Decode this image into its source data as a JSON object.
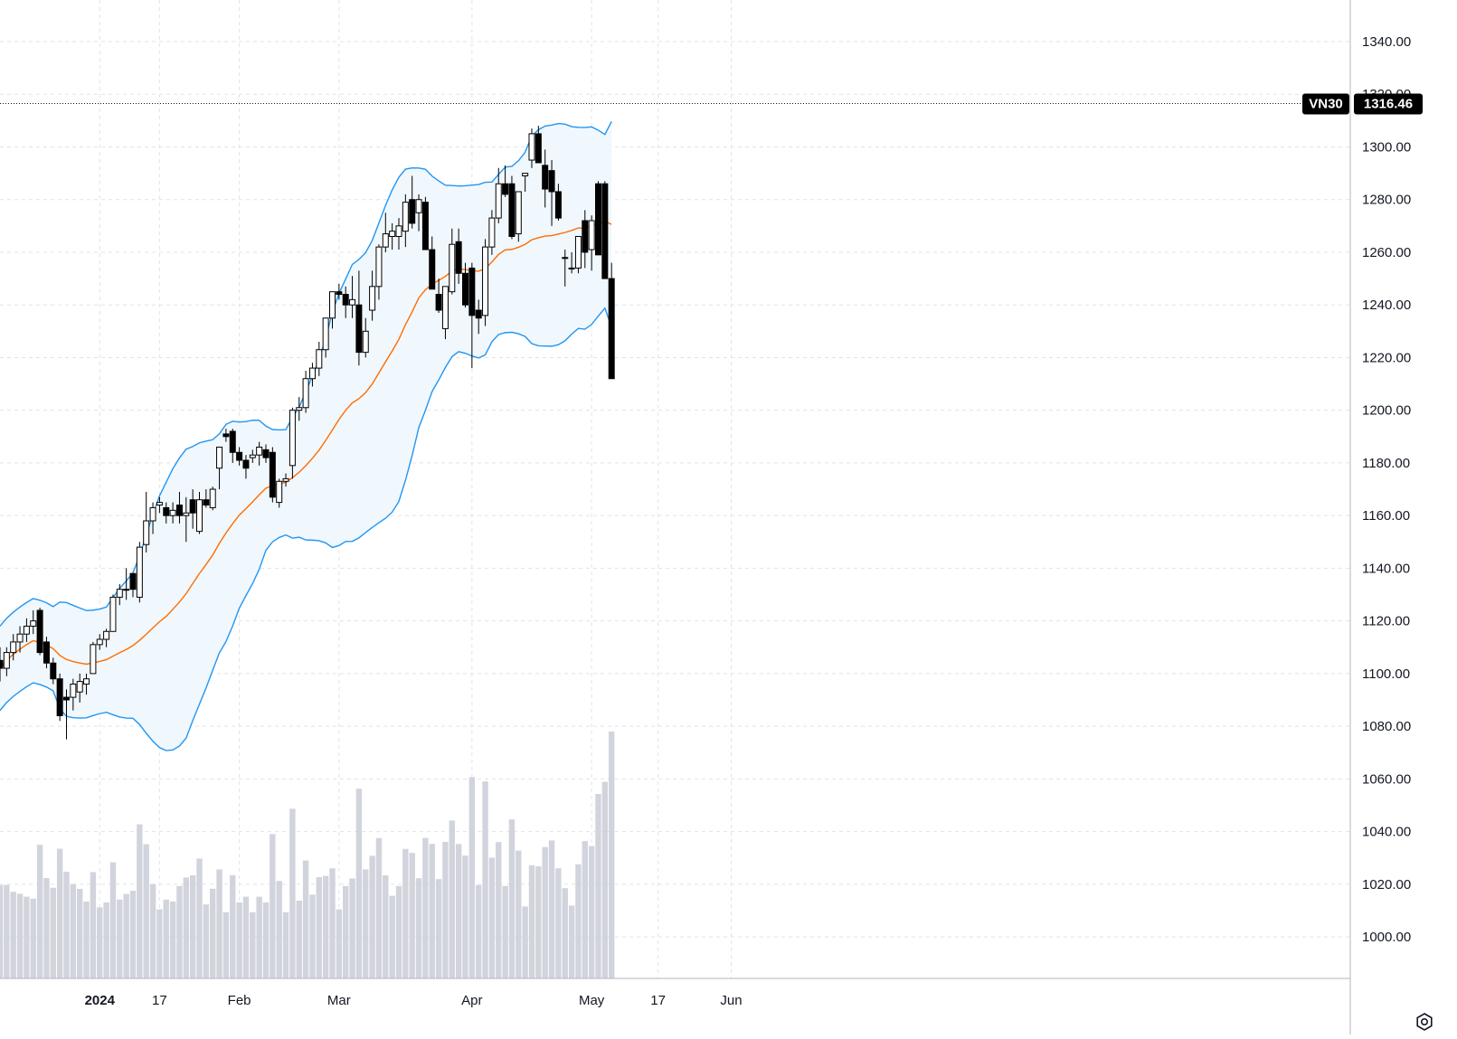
{
  "chart_data": {
    "type": "candlestick",
    "symbol": "VN30",
    "last_price": "1316.46",
    "y_axis": {
      "range": [
        990,
        1345
      ],
      "ticks": [
        "1000.00",
        "1020.00",
        "1040.00",
        "1060.00",
        "1080.00",
        "1100.00",
        "1120.00",
        "1140.00",
        "1160.00",
        "1180.00",
        "1200.00",
        "1220.00",
        "1240.00",
        "1260.00",
        "1280.00",
        "1300.00",
        "1320.00",
        "1340.00"
      ]
    },
    "x_axis": {
      "labels": [
        {
          "text": "2024",
          "bar": 15,
          "bold": true
        },
        {
          "text": "17",
          "bar": 24,
          "bold": false
        },
        {
          "text": "Feb",
          "bar": 36,
          "bold": false
        },
        {
          "text": "Mar",
          "bar": 51,
          "bold": false
        },
        {
          "text": "Apr",
          "bar": 71,
          "bold": false
        },
        {
          "text": "May",
          "bar": 89,
          "bold": false
        },
        {
          "text": "17",
          "bar": 99,
          "bold": false
        },
        {
          "text": "Jun",
          "bar": 110,
          "bold": false
        }
      ]
    },
    "candles_ohlc": [
      [
        1105,
        1110,
        1097,
        1102
      ],
      [
        1102,
        1110,
        1099,
        1108
      ],
      [
        1108,
        1115,
        1105,
        1112
      ],
      [
        1112,
        1118,
        1108,
        1115
      ],
      [
        1115,
        1121,
        1112,
        1118
      ],
      [
        1118,
        1124,
        1115,
        1120
      ],
      [
        1124,
        1125,
        1107,
        1108
      ],
      [
        1112,
        1114,
        1102,
        1104
      ],
      [
        1104,
        1106,
        1096,
        1098
      ],
      [
        1098,
        1100,
        1082,
        1084
      ],
      [
        1091,
        1094,
        1075,
        1090
      ],
      [
        1091,
        1098,
        1086,
        1096
      ],
      [
        1093,
        1100,
        1089,
        1097
      ],
      [
        1096,
        1100,
        1092,
        1098
      ],
      [
        1100,
        1112,
        1100,
        1111
      ],
      [
        1111,
        1115,
        1109,
        1113
      ],
      [
        1113,
        1117,
        1110,
        1116
      ],
      [
        1116,
        1130,
        1116,
        1129
      ],
      [
        1129,
        1134,
        1126,
        1132
      ],
      [
        1132,
        1140,
        1128,
        1132
      ],
      [
        1138,
        1138,
        1129,
        1132
      ],
      [
        1129,
        1150,
        1127,
        1148
      ],
      [
        1149,
        1169,
        1146,
        1158
      ],
      [
        1158,
        1165,
        1153,
        1163
      ],
      [
        1164,
        1167,
        1161,
        1165
      ],
      [
        1163,
        1165,
        1157,
        1160
      ],
      [
        1160,
        1165,
        1157,
        1162
      ],
      [
        1164,
        1169,
        1157,
        1160
      ],
      [
        1160,
        1167,
        1150,
        1161
      ],
      [
        1166,
        1170,
        1155,
        1161
      ],
      [
        1154,
        1169,
        1153,
        1166
      ],
      [
        1166,
        1170,
        1163,
        1164
      ],
      [
        1163,
        1171,
        1162,
        1170
      ],
      [
        1178,
        1185,
        1170,
        1186
      ],
      [
        1191,
        1193,
        1188,
        1190
      ],
      [
        1192,
        1193,
        1180,
        1184
      ],
      [
        1184,
        1186,
        1179,
        1181
      ],
      [
        1181,
        1183,
        1174,
        1178
      ],
      [
        1182,
        1185,
        1180,
        1183
      ],
      [
        1183,
        1188,
        1179,
        1186
      ],
      [
        1185,
        1187,
        1180,
        1182
      ],
      [
        1184,
        1186,
        1165,
        1167
      ],
      [
        1165,
        1174,
        1163,
        1173
      ],
      [
        1173,
        1176,
        1171,
        1174
      ],
      [
        1179,
        1201,
        1174,
        1200
      ],
      [
        1200,
        1205,
        1196,
        1201
      ],
      [
        1201,
        1215,
        1199,
        1212
      ],
      [
        1212,
        1218,
        1209,
        1216
      ],
      [
        1216,
        1226,
        1213,
        1223
      ],
      [
        1223,
        1230,
        1220,
        1235
      ],
      [
        1235,
        1245,
        1231,
        1245
      ],
      [
        1245,
        1248,
        1242,
        1244
      ],
      [
        1244,
        1247,
        1235,
        1240
      ],
      [
        1240,
        1251,
        1235,
        1242
      ],
      [
        1240,
        1253,
        1217,
        1222
      ],
      [
        1222,
        1235,
        1220,
        1230
      ],
      [
        1238,
        1253,
        1234,
        1247
      ],
      [
        1247,
        1263,
        1242,
        1262
      ],
      [
        1262,
        1275,
        1260,
        1267
      ],
      [
        1266,
        1271,
        1261,
        1268
      ],
      [
        1266,
        1273,
        1261,
        1270
      ],
      [
        1268,
        1282,
        1262,
        1279
      ],
      [
        1280,
        1289,
        1269,
        1271
      ],
      [
        1275,
        1282,
        1268,
        1280
      ],
      [
        1279,
        1281,
        1262,
        1261
      ],
      [
        1261,
        1266,
        1247,
        1246
      ],
      [
        1244,
        1250,
        1237,
        1238
      ],
      [
        1231,
        1246,
        1227,
        1247
      ],
      [
        1245,
        1269,
        1244,
        1263
      ],
      [
        1264,
        1269,
        1248,
        1252
      ],
      [
        1252,
        1256,
        1239,
        1240
      ],
      [
        1254,
        1256,
        1216,
        1236
      ],
      [
        1238,
        1242,
        1229,
        1235
      ],
      [
        1236,
        1265,
        1232,
        1262
      ],
      [
        1262,
        1276,
        1259,
        1273
      ],
      [
        1273,
        1292,
        1271,
        1286
      ],
      [
        1286,
        1293,
        1281,
        1282
      ],
      [
        1286,
        1289,
        1265,
        1266
      ],
      [
        1267,
        1280,
        1264,
        1283
      ],
      [
        1289,
        1290,
        1283,
        1290
      ],
      [
        1295,
        1307,
        1292,
        1305
      ],
      [
        1305,
        1308,
        1294,
        1294
      ],
      [
        1293,
        1299,
        1277,
        1284
      ],
      [
        1291,
        1295,
        1270,
        1283
      ],
      [
        1283,
        1286,
        1272,
        1273
      ],
      [
        1258,
        1261,
        1247,
        1258
      ],
      [
        1254,
        1260,
        1252,
        1254
      ],
      [
        1254,
        1266,
        1252,
        1266
      ],
      [
        1272,
        1276,
        1254,
        1260
      ],
      [
        1261,
        1274,
        1253,
        1272
      ],
      [
        1286,
        1287,
        1259,
        1259
      ],
      [
        1286,
        1287,
        1261,
        1250
      ],
      [
        1250,
        1256,
        1214,
        1212
      ]
    ],
    "bollinger": {
      "note": "20-period Bollinger Bands with middle SMA"
    },
    "colors": {
      "up": "#ffffff",
      "down": "#000000",
      "band": "#2196f3",
      "basis": "#ff6d00",
      "fill": "#f0f7fd",
      "volume": "#d1d4dc",
      "tag": "#000000"
    }
  },
  "icons": {
    "settings": "settings-gear-icon"
  }
}
